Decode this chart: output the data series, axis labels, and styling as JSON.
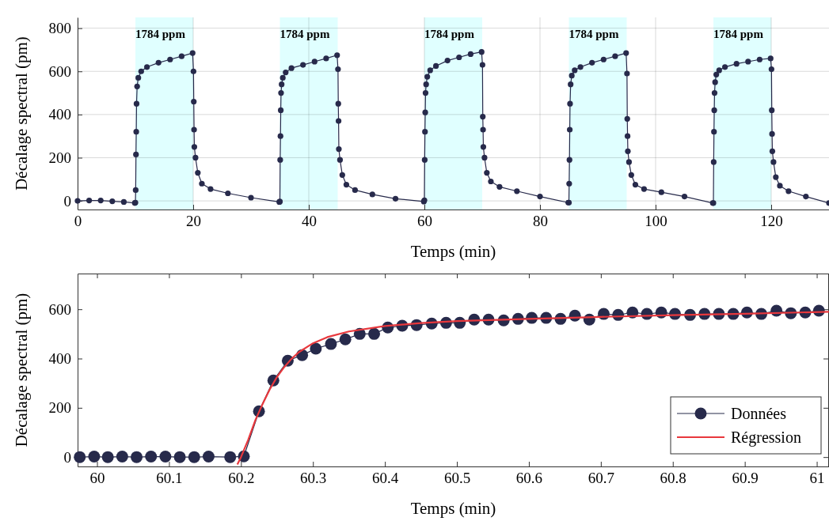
{
  "chart_data": [
    {
      "type": "line",
      "xlabel": "Temps (min)",
      "ylabel": "Décalage spectral (pm)",
      "xlim": [
        0,
        130
      ],
      "ylim": [
        -40,
        850
      ],
      "xticks": [
        0,
        20,
        40,
        60,
        80,
        100,
        120
      ],
      "yticks": [
        0,
        200,
        400,
        600,
        800
      ],
      "grid": true,
      "marker": "circle",
      "line_style": "solid",
      "bands": [
        {
          "axis": "x",
          "from": 10,
          "to": 20,
          "label": "1784 ppm",
          "color": "#e0ffff"
        },
        {
          "axis": "x",
          "from": 35,
          "to": 45,
          "label": "1784 ppm",
          "color": "#e0ffff"
        },
        {
          "axis": "x",
          "from": 60,
          "to": 70,
          "label": "1784 ppm",
          "color": "#e0ffff"
        },
        {
          "axis": "x",
          "from": 85,
          "to": 95,
          "label": "1784 ppm",
          "color": "#e0ffff"
        },
        {
          "axis": "x",
          "from": 110,
          "to": 120,
          "label": "1784 ppm",
          "color": "#e0ffff"
        }
      ],
      "series": [
        {
          "color": "#272a4b",
          "x": [
            0,
            2,
            4,
            6,
            8,
            9.9,
            10,
            10.05,
            10.1,
            10.15,
            10.2,
            10.3,
            10.5,
            11,
            12,
            14,
            16,
            18,
            19.9,
            20.05,
            20.1,
            20.15,
            20.2,
            20.4,
            20.8,
            21.5,
            23,
            26,
            30,
            34.9,
            35,
            35.05,
            35.1,
            35.15,
            35.2,
            35.3,
            35.5,
            36,
            37,
            39,
            41,
            43,
            44.9,
            45.05,
            45.1,
            45.15,
            45.2,
            45.4,
            45.8,
            46.5,
            48,
            51,
            55,
            59.9,
            60,
            60.05,
            60.1,
            60.15,
            60.2,
            60.3,
            60.5,
            61,
            62,
            64,
            66,
            68,
            69.9,
            70.05,
            70.1,
            70.15,
            70.2,
            70.4,
            70.8,
            71.5,
            73,
            76,
            80,
            84.9,
            85,
            85.05,
            85.1,
            85.15,
            85.2,
            85.3,
            85.5,
            86,
            87,
            89,
            91,
            93,
            94.9,
            95.05,
            95.1,
            95.15,
            95.2,
            95.4,
            95.8,
            96.5,
            98,
            101,
            105,
            109.9,
            110,
            110.05,
            110.1,
            110.15,
            110.2,
            110.3,
            110.5,
            111,
            112,
            114,
            116,
            118,
            119.9,
            120.05,
            120.1,
            120.15,
            120.2,
            120.4,
            120.8,
            121.5,
            123,
            126,
            130
          ],
          "values": [
            0,
            2,
            2,
            -2,
            -5,
            -10,
            -8,
            50,
            215,
            320,
            450,
            530,
            570,
            600,
            620,
            640,
            655,
            670,
            685,
            600,
            460,
            330,
            250,
            200,
            130,
            80,
            55,
            35,
            15,
            -5,
            -3,
            190,
            300,
            420,
            500,
            540,
            570,
            595,
            615,
            630,
            645,
            660,
            675,
            610,
            450,
            370,
            240,
            190,
            120,
            75,
            50,
            30,
            10,
            -3,
            3,
            190,
            320,
            410,
            500,
            540,
            575,
            605,
            625,
            650,
            665,
            680,
            690,
            630,
            390,
            330,
            250,
            200,
            130,
            90,
            65,
            45,
            20,
            -8,
            -8,
            80,
            190,
            330,
            450,
            540,
            580,
            605,
            620,
            640,
            655,
            670,
            685,
            590,
            380,
            300,
            230,
            180,
            120,
            75,
            55,
            40,
            20,
            -10,
            -10,
            180,
            320,
            420,
            500,
            550,
            585,
            605,
            620,
            635,
            645,
            655,
            660,
            610,
            420,
            310,
            230,
            180,
            110,
            70,
            45,
            20,
            -10
          ]
        }
      ]
    },
    {
      "type": "line",
      "xlabel": "Temps (min)",
      "ylabel": "Décalage spectral (pm)",
      "xlim": [
        59.973,
        61.017
      ],
      "ylim": [
        -38,
        745
      ],
      "xticks": [
        60,
        60.1,
        60.2,
        60.3,
        60.4,
        60.5,
        60.6,
        60.7,
        60.8,
        60.9,
        61
      ],
      "yticks": [
        0,
        200,
        400,
        600
      ],
      "grid": false,
      "legend": "bottom right",
      "line_style": "solid",
      "series": [
        {
          "name": "Données",
          "color": "#272a4b",
          "marker": "circle",
          "x": [
            59.976,
            59.996,
            60.015,
            60.035,
            60.055,
            60.075,
            60.095,
            60.115,
            60.135,
            60.155,
            60.185,
            60.204,
            60.225,
            60.245,
            60.265,
            60.285,
            60.304,
            60.325,
            60.345,
            60.365,
            60.385,
            60.404,
            60.424,
            60.444,
            60.465,
            60.485,
            60.504,
            60.524,
            60.544,
            60.565,
            60.585,
            60.604,
            60.624,
            60.644,
            60.664,
            60.684,
            60.704,
            60.724,
            60.744,
            60.764,
            60.784,
            60.803,
            60.824,
            60.844,
            60.864,
            60.884,
            60.903,
            60.923,
            60.944,
            60.964,
            60.984,
            61.003
          ],
          "values": [
            0,
            2,
            0,
            2,
            0,
            2,
            2,
            0,
            0,
            2,
            0,
            3,
            186,
            311,
            391,
            414,
            440,
            459,
            478,
            500,
            500,
            526,
            533,
            536,
            542,
            545,
            545,
            558,
            558,
            555,
            561,
            565,
            565,
            561,
            574,
            558,
            581,
            577,
            587,
            581,
            587,
            581,
            577,
            581,
            581,
            581,
            587,
            581,
            594,
            584,
            587,
            594
          ]
        },
        {
          "name": "Régression",
          "color": "#e8383d",
          "marker": "none",
          "x": [
            60.195,
            60.2,
            60.21,
            60.22,
            60.23,
            60.24,
            60.25,
            60.26,
            60.27,
            60.28,
            60.3,
            60.32,
            60.35,
            60.4,
            60.45,
            60.5,
            60.6,
            60.7,
            60.8,
            60.9,
            61.017
          ],
          "values": [
            -30,
            0,
            70,
            150,
            215,
            275,
            325,
            365,
            398,
            425,
            462,
            487,
            510,
            532,
            544,
            552,
            561,
            569,
            576,
            582,
            590
          ]
        }
      ]
    }
  ]
}
